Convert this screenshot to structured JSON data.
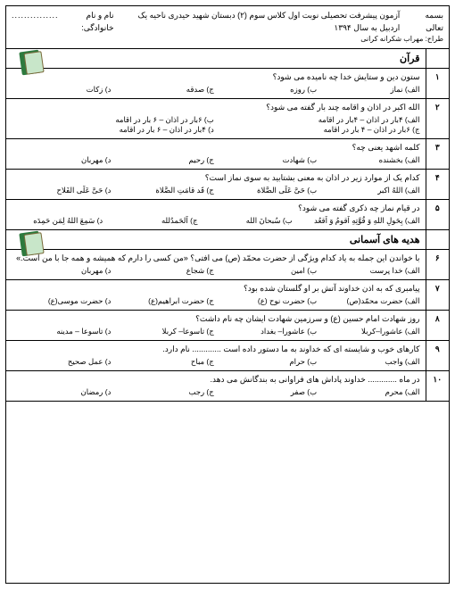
{
  "header": {
    "basmala": "بسمه تعالی",
    "title": "آزمون پیشرفت تحصیلی نوبت اول کلاس سوم (۲) دبستان شهید حیدری ناحیه یک اردبیل به سال ۱۳۹۴",
    "name_label": "نام و نام خانوادگی:",
    "designer": "طراح: مهراب شکرانه کرانی"
  },
  "section1": {
    "title": "قرآن"
  },
  "q1": {
    "num": "۱",
    "text": "ستون دین و ستایش خدا چه نامیده می شود؟",
    "a": "الف) نماز",
    "b": "ب) روزه",
    "c": "ج) صدقه",
    "d": "د) زکات"
  },
  "q2": {
    "num": "۲",
    "text": "الله اکبر در اذان و اقامه چند بار گفته می شود؟",
    "a": "الف) ۴بار در اذان – ۴بار در اقامه",
    "b": "ب) ۶بار در اذان – ۶ بار در اقامه",
    "c": "ج) ۶بار در اذان – ۴ بار در اقامه",
    "d": "د) ۴بار در اذان – ۶ بار در اقامه"
  },
  "q3": {
    "num": "۳",
    "text": "کلمه اشهد یعنی چه؟",
    "a": "الف) بخشنده",
    "b": "ب) شهادت",
    "c": "ج) رحیم",
    "d": "د) مهربان"
  },
  "q4": {
    "num": "۴",
    "text": "کدام یک از موارد زیر در اذان به معنی بشتابید به سوی نماز است؟",
    "a": "الف) اللهُ اکبر",
    "b": "ب) حَیَّ عَلَی الصَّلاة",
    "c": "ج) قَد قامَتِ الصَّلاة",
    "d": "د) حَیَّ عَلَی الفَلاح"
  },
  "q5": {
    "num": "۵",
    "text": "در قیام نماز چه ذکری گفته می شود؟",
    "a": "الف) بِحَولِ اللهِ وَ قُوَّتِهِ اَقومُ وَ اَقعُد",
    "b": "ب) سُبحانَ الله",
    "c": "ج) اَلحَمدُلله",
    "d": "د) سَمِعَ اللهُ لِمَن حَمِدَه"
  },
  "section2": {
    "title": "هدیه های آسمانی"
  },
  "q6": {
    "num": "۶",
    "text": "با خواندن این جمله به یاد کدام ویژگی از حضرت محمّد (ص) می افتی؟ «من کسی را دارم که همیشه و همه جا با من است.»",
    "a": "الف) خدا پرست",
    "b": "ب) امین",
    "c": "ج) شجاع",
    "d": "د) مهربان"
  },
  "q7": {
    "num": "۷",
    "text": "پیامبری که به اذن خداوند آتش بر او گلستان شده بود؟",
    "a": "الف) حضرت محمّد(ص)",
    "b": "ب) حضرت نوح (ع)",
    "c": "ج) حضرت ابراهیم(ع)",
    "d": "د) حضرت موسی(ع)"
  },
  "q8": {
    "num": "۸",
    "text": "روز شهادت امام حسین (ع) و سرزمین شهادت ایشان چه نام داشت؟",
    "a": "الف) عاشورا–کربلا",
    "b": "ب) عاشورا– بغداد",
    "c": "ج) تاسوعا– کربلا",
    "d": "د) تاسوعا – مدینه"
  },
  "q9": {
    "num": "۹",
    "text": "کارهای خوب و شایسته ای که خداوند به ما دستور داده است ............. نام دارد.",
    "a": "الف) واجب",
    "b": "ب) حرام",
    "c": "ج) مباح",
    "d": "د) عمل صحیح"
  },
  "q10": {
    "num": "۱۰",
    "text": "در ماه ............. خداوند پاداش های فراوانی به بندگانش می دهد.",
    "a": "الف) محرم",
    "b": "ب) صفر",
    "c": "ج) رجب",
    "d": "د) رمضان"
  }
}
